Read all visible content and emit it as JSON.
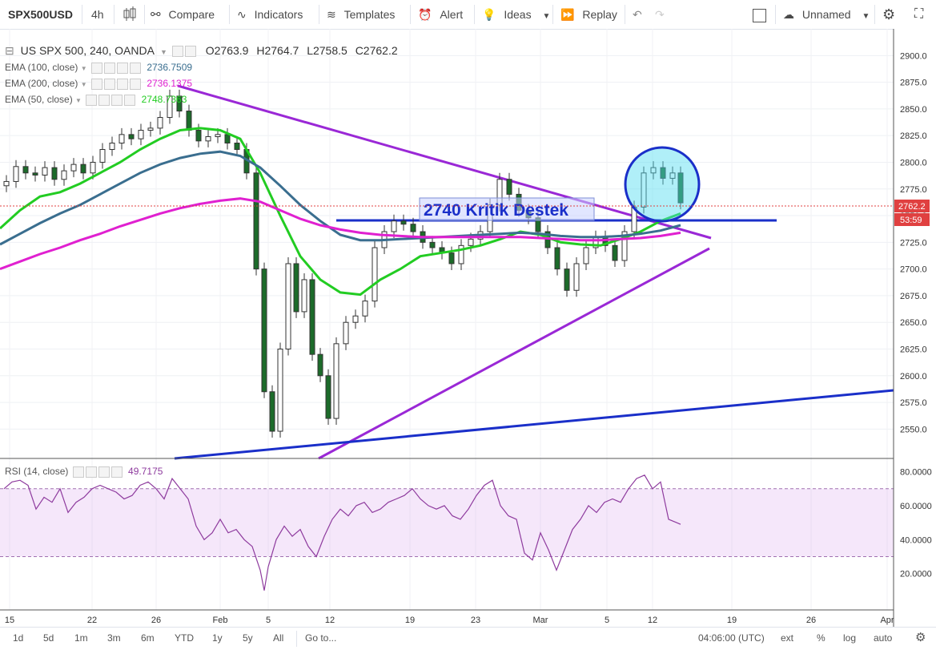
{
  "toolbar": {
    "symbol": "SPX500USD",
    "interval": "4h",
    "compare": "Compare",
    "indicators": "Indicators",
    "templates": "Templates",
    "alert": "Alert",
    "ideas": "Ideas",
    "replay": "Replay",
    "layout_name": "Unnamed"
  },
  "header": {
    "title": "US SPX 500, 240, OANDA",
    "open": "O2763.9",
    "high": "H2764.7",
    "low": "L2758.5",
    "close": "C2762.2"
  },
  "indicators": [
    {
      "label": "EMA (100, close)",
      "value": "2736.7509",
      "color": "#3a6e8f"
    },
    {
      "label": "EMA (200, close)",
      "value": "2736.1375",
      "color": "#e020d0"
    },
    {
      "label": "EMA (50, close)",
      "value": "2748.7363",
      "color": "#22cc22"
    }
  ],
  "rsi_legend": {
    "label": "RSI (14, close)",
    "value": "49.7175",
    "color": "#8e3b9e"
  },
  "annotations": {
    "support_text": "2740 Kritik Destek"
  },
  "price_axis": {
    "ticks": [
      "2900.0",
      "2875.0",
      "2850.0",
      "2825.0",
      "2800.0",
      "2775.0",
      "2750.0",
      "2725.0",
      "2700.0",
      "2675.0",
      "2650.0",
      "2625.0",
      "2600.0",
      "2575.0",
      "2550.0"
    ],
    "last_price": "2762.2",
    "countdown": "53:59"
  },
  "rsi_axis": {
    "ticks": [
      "80.0000",
      "60.0000",
      "40.0000",
      "20.0000"
    ]
  },
  "time_axis": {
    "labels": [
      "15",
      "22",
      "26",
      "Feb",
      "5",
      "12",
      "19",
      "23",
      "Mar",
      "5",
      "12",
      "19",
      "26",
      "Apr"
    ]
  },
  "bottom_bar": {
    "ranges": [
      "1d",
      "5d",
      "1m",
      "3m",
      "6m",
      "YTD",
      "1y",
      "5y",
      "All"
    ],
    "goto": "Go to...",
    "clock": "04:06:00 (UTC)",
    "opts": [
      "ext",
      "%",
      "log",
      "auto"
    ]
  },
  "chart_data": {
    "type": "line",
    "price_ylim": [
      2530,
      2910
    ],
    "rsi_ylim": [
      0,
      85
    ],
    "rsi_band": [
      30,
      70
    ],
    "series": [
      {
        "name": "EMA (50, close)",
        "color": "#22cc22",
        "x": [
          0,
          25,
          50,
          75,
          100,
          125,
          150,
          175,
          200,
          225,
          250,
          275,
          300,
          325,
          350,
          375,
          400,
          425,
          450,
          475,
          500,
          525,
          550,
          575,
          600,
          625,
          650,
          675,
          700,
          725,
          750,
          775,
          800,
          825,
          850
        ],
        "values": [
          2738,
          2755,
          2768,
          2772,
          2780,
          2790,
          2800,
          2812,
          2822,
          2830,
          2832,
          2830,
          2822,
          2790,
          2750,
          2712,
          2690,
          2678,
          2676,
          2690,
          2700,
          2712,
          2715,
          2718,
          2722,
          2728,
          2735,
          2732,
          2725,
          2723,
          2722,
          2728,
          2735,
          2745,
          2752
        ]
      },
      {
        "name": "EMA (100, close)",
        "color": "#3a6e8f",
        "x": [
          0,
          25,
          50,
          75,
          100,
          125,
          150,
          175,
          200,
          225,
          250,
          275,
          300,
          325,
          350,
          375,
          400,
          425,
          450,
          475,
          500,
          525,
          550,
          575,
          600,
          625,
          650,
          675,
          700,
          725,
          750,
          775,
          800,
          825,
          850
        ],
        "values": [
          2723,
          2733,
          2743,
          2752,
          2760,
          2770,
          2780,
          2790,
          2798,
          2804,
          2808,
          2810,
          2806,
          2795,
          2778,
          2760,
          2745,
          2732,
          2727,
          2727,
          2728,
          2729,
          2730,
          2731,
          2732,
          2733,
          2734,
          2733,
          2731,
          2730,
          2730,
          2731,
          2733,
          2736,
          2741
        ]
      },
      {
        "name": "EMA (200, close)",
        "color": "#e020d0",
        "x": [
          0,
          25,
          50,
          75,
          100,
          125,
          150,
          175,
          200,
          225,
          250,
          275,
          300,
          325,
          350,
          375,
          400,
          425,
          450,
          475,
          500,
          525,
          550,
          575,
          600,
          625,
          650,
          675,
          700,
          725,
          750,
          775,
          800,
          825,
          850
        ],
        "values": [
          2700,
          2707,
          2714,
          2720,
          2727,
          2733,
          2740,
          2746,
          2752,
          2757,
          2761,
          2764,
          2766,
          2763,
          2755,
          2747,
          2741,
          2737,
          2734,
          2732,
          2731,
          2730,
          2730,
          2730,
          2730,
          2730,
          2730,
          2729,
          2728,
          2727,
          2727,
          2728,
          2729,
          2731,
          2734
        ]
      }
    ],
    "candles": {
      "x": [
        8,
        20,
        32,
        44,
        56,
        68,
        80,
        92,
        104,
        116,
        128,
        140,
        152,
        164,
        176,
        188,
        200,
        212,
        224,
        236,
        248,
        260,
        272,
        284,
        296,
        308,
        320,
        330,
        340,
        350,
        360,
        370,
        380,
        390,
        400,
        410,
        420,
        432,
        444,
        456,
        468,
        480,
        492,
        504,
        516,
        528,
        540,
        552,
        564,
        576,
        588,
        600,
        612,
        624,
        636,
        648,
        660,
        672,
        684,
        696,
        708,
        720,
        732,
        744,
        756,
        768,
        780,
        792,
        804,
        816,
        828,
        840,
        850
      ],
      "close": [
        2782,
        2796,
        2790,
        2788,
        2795,
        2784,
        2792,
        2798,
        2790,
        2800,
        2812,
        2818,
        2826,
        2822,
        2830,
        2832,
        2842,
        2862,
        2848,
        2830,
        2820,
        2824,
        2826,
        2818,
        2812,
        2790,
        2700,
        2585,
        2548,
        2625,
        2705,
        2660,
        2690,
        2620,
        2600,
        2560,
        2630,
        2650,
        2656,
        2670,
        2720,
        2735,
        2745,
        2742,
        2735,
        2725,
        2720,
        2715,
        2705,
        2722,
        2728,
        2735,
        2760,
        2784,
        2770,
        2755,
        2748,
        2735,
        2720,
        2700,
        2680,
        2705,
        2720,
        2730,
        2722,
        2708,
        2735,
        2758,
        2790,
        2795,
        2785,
        2790,
        2762
      ]
    },
    "rsi": {
      "x": [
        5,
        15,
        25,
        35,
        45,
        55,
        65,
        75,
        85,
        95,
        105,
        115,
        125,
        135,
        145,
        155,
        165,
        175,
        185,
        195,
        205,
        215,
        225,
        235,
        245,
        255,
        265,
        275,
        285,
        295,
        305,
        315,
        325,
        330,
        335,
        345,
        355,
        365,
        375,
        385,
        395,
        405,
        415,
        425,
        435,
        445,
        455,
        465,
        475,
        485,
        495,
        505,
        515,
        525,
        535,
        545,
        555,
        565,
        575,
        585,
        595,
        605,
        615,
        625,
        635,
        645,
        655,
        665,
        675,
        685,
        695,
        705,
        715,
        725,
        735,
        745,
        755,
        765,
        775,
        785,
        795,
        805,
        815,
        825,
        835,
        845,
        850
      ],
      "values": [
        70,
        74,
        75,
        72,
        58,
        65,
        62,
        70,
        56,
        62,
        65,
        70,
        72,
        70,
        68,
        64,
        66,
        72,
        74,
        70,
        64,
        76,
        70,
        64,
        48,
        40,
        44,
        52,
        44,
        46,
        40,
        36,
        22,
        10,
        24,
        40,
        48,
        42,
        46,
        36,
        30,
        42,
        52,
        58,
        54,
        60,
        62,
        56,
        58,
        62,
        64,
        66,
        70,
        64,
        60,
        58,
        60,
        54,
        52,
        58,
        66,
        72,
        75,
        60,
        54,
        52,
        32,
        28,
        44,
        34,
        22,
        34,
        46,
        52,
        60,
        56,
        62,
        64,
        62,
        70,
        76,
        78,
        70,
        74,
        52,
        50,
        49
      ]
    }
  }
}
